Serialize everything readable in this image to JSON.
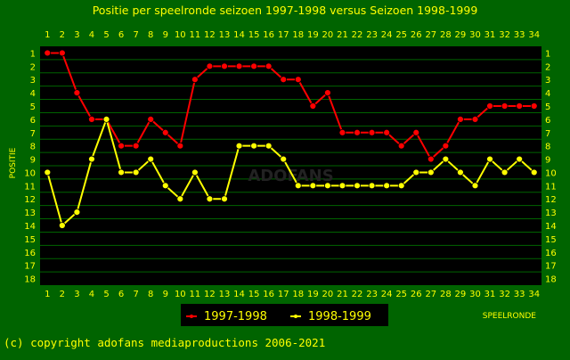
{
  "chart_data": {
    "type": "line",
    "title": "Positie per speelronde seizoen 1997-1998 versus Seizoen 1998-1999",
    "xlabel": "SPEELRONDE",
    "ylabel": "POSITIE",
    "x": [
      1,
      2,
      3,
      4,
      5,
      6,
      7,
      8,
      9,
      10,
      11,
      12,
      13,
      14,
      15,
      16,
      17,
      18,
      19,
      20,
      21,
      22,
      23,
      24,
      25,
      26,
      27,
      28,
      29,
      30,
      31,
      32,
      33,
      34
    ],
    "y_ticks": [
      1,
      2,
      3,
      4,
      5,
      6,
      7,
      8,
      9,
      10,
      11,
      12,
      13,
      14,
      15,
      16,
      17,
      18
    ],
    "ylim": [
      1,
      18
    ],
    "y_inverted": true,
    "grid": true,
    "legend_position": "bottom-center",
    "series": [
      {
        "name": "1997-1998",
        "color": "#ff0000",
        "values": [
          1,
          1,
          4,
          6,
          6,
          8,
          8,
          6,
          7,
          8,
          3,
          2,
          2,
          2,
          2,
          2,
          3,
          3,
          5,
          4,
          7,
          7,
          7,
          7,
          8,
          7,
          9,
          8,
          6,
          6,
          5,
          5,
          5,
          5
        ]
      },
      {
        "name": "1998-1999",
        "color": "#ffff00",
        "values": [
          10,
          14,
          13,
          9,
          6,
          10,
          10,
          9,
          11,
          12,
          10,
          12,
          12,
          8,
          8,
          8,
          9,
          11,
          11,
          11,
          11,
          11,
          11,
          11,
          11,
          10,
          10,
          9,
          10,
          11,
          9,
          10,
          9,
          10
        ]
      }
    ]
  },
  "footer": {
    "copyright": "(c) copyright adofans mediaproductions 2006-2021"
  },
  "watermark": "ADOFANS",
  "colors": {
    "background": "#006400",
    "plot_background": "#000000",
    "grid": "#006400",
    "text": "#ffff00"
  }
}
